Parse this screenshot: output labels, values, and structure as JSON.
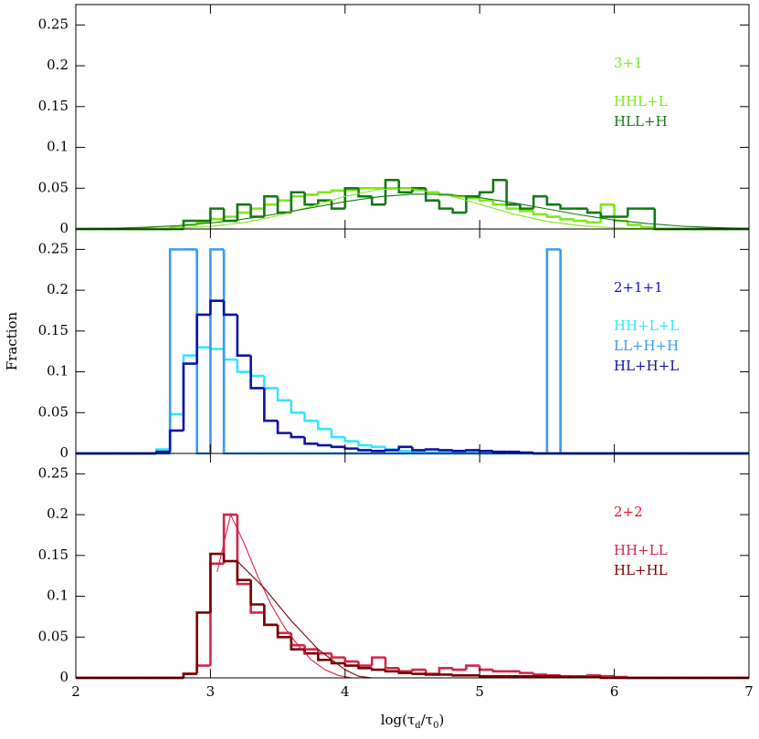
{
  "chart_data": [
    {
      "type": "histogram",
      "label": "3+1",
      "label_color": "#7ee81a",
      "xlim": [
        2,
        7
      ],
      "xticks": [
        2,
        3,
        4,
        5,
        6,
        7
      ],
      "xtick_labels": false,
      "ylim": [
        0,
        0.275
      ],
      "yticks": [
        0,
        0.05,
        0.1,
        0.15,
        0.2,
        0.25
      ],
      "bins": [
        2,
        2.1,
        2.2,
        2.3,
        2.4,
        2.5,
        2.6,
        2.7,
        2.8,
        2.9,
        3,
        3.1,
        3.2,
        3.3,
        3.4,
        3.5,
        3.6,
        3.7,
        3.8,
        3.9,
        4,
        4.1,
        4.2,
        4.3,
        4.4,
        4.5,
        4.6,
        4.7,
        4.8,
        4.9,
        5,
        5.1,
        5.2,
        5.3,
        5.4,
        5.5,
        5.6,
        5.7,
        5.8,
        5.9,
        6,
        6.1,
        6.2,
        6.3,
        6.4,
        6.5,
        6.6,
        6.7,
        6.8,
        6.9,
        7
      ],
      "series": [
        {
          "name": "HHL+L",
          "color": "#7ee81a",
          "values": [
            0,
            0,
            0,
            0,
            0,
            0,
            0,
            0.002,
            0.005,
            0.008,
            0.012,
            0.015,
            0.02,
            0.025,
            0.03,
            0.035,
            0.04,
            0.042,
            0.045,
            0.047,
            0.048,
            0.05,
            0.05,
            0.05,
            0.05,
            0.048,
            0.045,
            0.042,
            0.04,
            0.038,
            0.035,
            0.03,
            0.025,
            0.022,
            0.018,
            0.015,
            0.012,
            0.01,
            0.008,
            0.03,
            0.01,
            0.005,
            0.002,
            0,
            0,
            0,
            0,
            0,
            0,
            0
          ]
        },
        {
          "name": "HLL+H",
          "color": "#127a12",
          "values": [
            0,
            0,
            0,
            0,
            0,
            0,
            0,
            0,
            0.01,
            0.01,
            0.025,
            0.01,
            0.03,
            0.015,
            0.04,
            0.02,
            0.045,
            0.03,
            0.035,
            0.025,
            0.05,
            0.04,
            0.03,
            0.06,
            0.045,
            0.05,
            0.035,
            0.025,
            0.02,
            0.04,
            0.045,
            0.06,
            0.03,
            0.025,
            0.04,
            0.03,
            0.025,
            0.025,
            0.02,
            0.015,
            0.015,
            0.025,
            0.025,
            0,
            0,
            0,
            0,
            0,
            0,
            0
          ]
        }
      ],
      "fits": [
        {
          "color": "#7ee81a",
          "x": [
            2,
            2.25,
            2.5,
            2.75,
            3,
            3.25,
            3.5,
            3.75,
            4,
            4.25,
            4.5,
            4.75,
            5,
            5.25,
            5.5,
            5.75,
            6,
            6.25,
            6.5,
            6.75,
            7
          ],
          "values": [
            0,
            0.0001,
            0.0003,
            0.0011,
            0.0033,
            0.0079,
            0.0162,
            0.0278,
            0.04,
            0.0485,
            0.0493,
            0.0422,
            0.0303,
            0.0184,
            0.0093,
            0.004,
            0.0014,
            0.0004,
            0.0001,
            0,
            0
          ]
        },
        {
          "color": "#127a12",
          "x": [
            2,
            2.25,
            2.5,
            2.75,
            3,
            3.25,
            3.5,
            3.75,
            4,
            4.25,
            4.5,
            4.75,
            5,
            5.25,
            5.5,
            5.75,
            6,
            6.25,
            6.5,
            6.75,
            7
          ],
          "values": [
            0.0004,
            0.0009,
            0.002,
            0.004,
            0.0073,
            0.0122,
            0.0186,
            0.0261,
            0.0335,
            0.0395,
            0.0427,
            0.0423,
            0.0385,
            0.0321,
            0.0246,
            0.0172,
            0.011,
            0.0066,
            0.0035,
            0.0018,
            0.0008
          ]
        }
      ]
    },
    {
      "type": "histogram",
      "label": "2+1+1",
      "label_color": "#1010c8",
      "ylabel": "Fraction",
      "xlim": [
        2,
        7
      ],
      "xticks": [
        2,
        3,
        4,
        5,
        6,
        7
      ],
      "xtick_labels": false,
      "ylim": [
        0,
        0.275
      ],
      "yticks": [
        0,
        0.05,
        0.1,
        0.15,
        0.2,
        0.25
      ],
      "bins": [
        2,
        2.1,
        2.2,
        2.3,
        2.4,
        2.5,
        2.6,
        2.7,
        2.8,
        2.9,
        3,
        3.1,
        3.2,
        3.3,
        3.4,
        3.5,
        3.6,
        3.7,
        3.8,
        3.9,
        4,
        4.1,
        4.2,
        4.3,
        4.4,
        4.5,
        4.6,
        4.7,
        4.8,
        4.9,
        5,
        5.1,
        5.2,
        5.3,
        5.4,
        5.5,
        5.6,
        5.7,
        5.8,
        5.9,
        6,
        6.1,
        6.2,
        6.3,
        6.4,
        6.5,
        6.6,
        6.7,
        6.8,
        6.9,
        7
      ],
      "series": [
        {
          "name": "HH+L+L",
          "color": "#33e6ff",
          "values": [
            0,
            0,
            0,
            0,
            0,
            0,
            0.005,
            0.048,
            0.12,
            0.13,
            0.128,
            0.115,
            0.1,
            0.095,
            0.08,
            0.065,
            0.05,
            0.04,
            0.03,
            0.02,
            0.015,
            0.01,
            0.008,
            0.005,
            0.003,
            0.002,
            0.001,
            0.001,
            0.001,
            0.001,
            0.001,
            0.001,
            0.001,
            0,
            0,
            0,
            0,
            0,
            0,
            0,
            0,
            0,
            0,
            0,
            0,
            0,
            0,
            0,
            0,
            0
          ]
        },
        {
          "name": "LL+H+H",
          "color": "#3a9af0",
          "values": [
            0,
            0,
            0,
            0,
            0,
            0,
            0,
            0.25,
            0.25,
            0,
            0.25,
            0,
            0,
            0,
            0,
            0,
            0,
            0,
            0,
            0,
            0,
            0,
            0,
            0,
            0,
            0,
            0,
            0,
            0,
            0,
            0,
            0,
            0,
            0,
            0,
            0.25,
            0,
            0,
            0,
            0,
            0,
            0,
            0,
            0,
            0,
            0,
            0,
            0,
            0,
            0
          ]
        },
        {
          "name": "HL+H+L",
          "color": "#0c12a8",
          "values": [
            0,
            0,
            0,
            0,
            0,
            0,
            0.002,
            0.028,
            0.11,
            0.17,
            0.187,
            0.17,
            0.12,
            0.08,
            0.04,
            0.025,
            0.02,
            0.012,
            0.01,
            0.008,
            0.006,
            0.004,
            0.003,
            0.004,
            0.008,
            0.004,
            0.005,
            0.004,
            0.003,
            0.004,
            0.003,
            0.002,
            0.002,
            0.001,
            0,
            0,
            0,
            0,
            0,
            0,
            0,
            0,
            0,
            0,
            0,
            0,
            0,
            0,
            0,
            0
          ]
        }
      ],
      "fits": []
    },
    {
      "type": "histogram",
      "label": "2+2",
      "label_color": "#e8102a",
      "xlim": [
        2,
        7
      ],
      "xticks": [
        2,
        3,
        4,
        5,
        6,
        7
      ],
      "xtick_labels": true,
      "xlabel": [
        "log(τ",
        "d",
        "/τ",
        "0",
        ")"
      ],
      "ylim": [
        0,
        0.275
      ],
      "yticks": [
        0,
        0.05,
        0.1,
        0.15,
        0.2,
        0.25
      ],
      "bins": [
        2,
        2.1,
        2.2,
        2.3,
        2.4,
        2.5,
        2.6,
        2.7,
        2.8,
        2.9,
        3,
        3.1,
        3.2,
        3.3,
        3.4,
        3.5,
        3.6,
        3.7,
        3.8,
        3.9,
        4,
        4.1,
        4.2,
        4.3,
        4.4,
        4.5,
        4.6,
        4.7,
        4.8,
        4.9,
        5,
        5.1,
        5.2,
        5.3,
        5.4,
        5.5,
        5.6,
        5.7,
        5.8,
        5.9,
        6,
        6.1,
        6.2,
        6.3,
        6.4,
        6.5,
        6.6,
        6.7,
        6.8,
        6.9,
        7
      ],
      "series": [
        {
          "name": "HH+LL",
          "color": "#d42448",
          "values": [
            0,
            0,
            0,
            0,
            0,
            0,
            0,
            0,
            0.005,
            0.015,
            0.14,
            0.2,
            0.115,
            0.08,
            0.065,
            0.055,
            0.04,
            0.035,
            0.03,
            0.025,
            0.02,
            0.015,
            0.025,
            0.012,
            0.008,
            0.01,
            0.005,
            0.012,
            0.01,
            0.015,
            0.01,
            0.008,
            0.008,
            0.006,
            0.004,
            0.003,
            0.002,
            0.002,
            0.003,
            0.002,
            0.001,
            0,
            0,
            0,
            0,
            0,
            0,
            0,
            0,
            0
          ]
        },
        {
          "name": "HL+HL",
          "color": "#7a0000",
          "values": [
            0,
            0,
            0,
            0,
            0,
            0,
            0,
            0,
            0.005,
            0.08,
            0.152,
            0.143,
            0.12,
            0.09,
            0.065,
            0.05,
            0.035,
            0.03,
            0.022,
            0.018,
            0.015,
            0.012,
            0.01,
            0.008,
            0.006,
            0.005,
            0.004,
            0.004,
            0.003,
            0.003,
            0.002,
            0.002,
            0.002,
            0.002,
            0.002,
            0.002,
            0.001,
            0.001,
            0.001,
            0,
            0,
            0,
            0,
            0,
            0,
            0,
            0,
            0,
            0,
            0
          ]
        }
      ],
      "fits": [
        {
          "color": "#d42448",
          "x": [
            3.05,
            3.15,
            3.25,
            3.35,
            3.45,
            3.55,
            3.65,
            3.75,
            3.85,
            3.95,
            4.05
          ],
          "values": [
            0.13,
            0.2,
            0.165,
            0.125,
            0.09,
            0.062,
            0.04,
            0.022,
            0.01,
            0.003,
            0
          ]
        },
        {
          "color": "#7a0000",
          "x": [
            3.2,
            3.4,
            3.6,
            3.8,
            4,
            4.1,
            4.2
          ],
          "values": [
            0.143,
            0.11,
            0.07,
            0.035,
            0.01,
            0.002,
            0
          ]
        }
      ]
    }
  ]
}
